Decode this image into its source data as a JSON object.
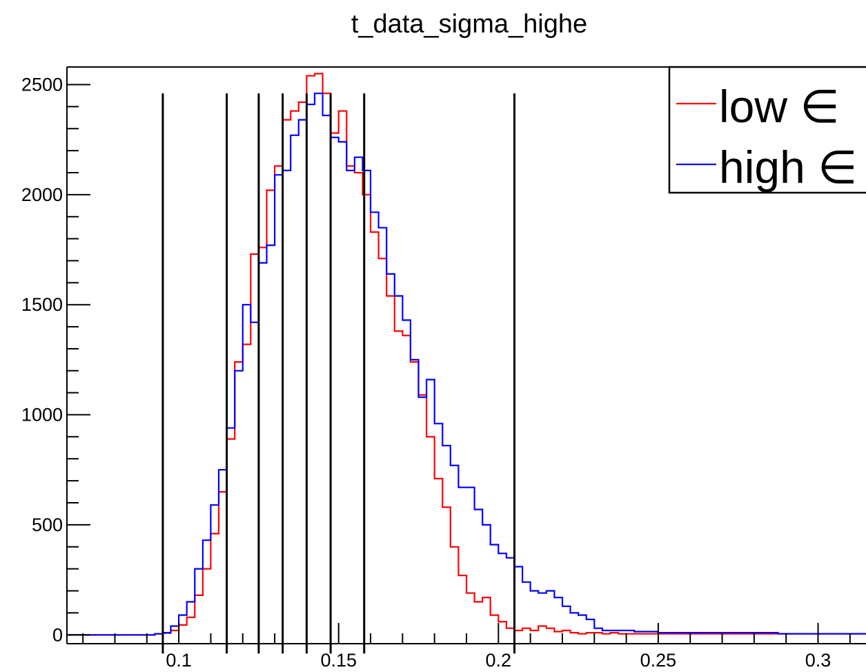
{
  "chart_data": {
    "type": "histogram",
    "title": "t_data_sigma_highe",
    "xlabel": "",
    "ylabel": "",
    "xlim": [
      0.065,
      0.315
    ],
    "ylim": [
      -40,
      2580
    ],
    "x_ticks": [
      0.1,
      0.15,
      0.2,
      0.25,
      0.3
    ],
    "x_tick_labels": [
      "0.1",
      "0.15",
      "0.2",
      "0.25",
      "0.3"
    ],
    "y_ticks": [
      0,
      500,
      1000,
      1500,
      2000,
      2500
    ],
    "y_tick_labels": [
      "0",
      "500",
      "1000",
      "1500",
      "2000",
      "2500"
    ],
    "bin_width": 0.0025,
    "x_start": 0.065,
    "legend": {
      "position": "top-right"
    },
    "colors": {
      "low": "#ff0000",
      "high": "#0000ff",
      "cuts": "#000000"
    },
    "series": [
      {
        "name": "low ∈",
        "color": "#ff0000",
        "values": [
          0,
          0,
          0,
          0,
          0,
          0,
          0,
          0,
          0,
          0,
          0,
          5,
          8,
          20,
          45,
          80,
          180,
          300,
          460,
          650,
          890,
          1240,
          1320,
          1730,
          1760,
          2020,
          2130,
          2340,
          2380,
          2420,
          2540,
          2550,
          2460,
          2280,
          2380,
          2130,
          2100,
          2000,
          1830,
          1710,
          1540,
          1380,
          1360,
          1240,
          1090,
          900,
          710,
          580,
          400,
          270,
          190,
          150,
          170,
          90,
          60,
          30,
          20,
          30,
          20,
          40,
          30,
          15,
          20,
          10,
          5,
          10,
          10,
          5,
          10,
          5,
          5,
          5,
          5,
          5,
          5,
          5,
          5,
          5,
          5,
          5,
          5,
          5,
          5,
          5,
          5,
          5,
          5,
          5,
          5,
          5,
          5,
          5,
          5,
          5,
          5,
          5,
          5,
          5,
          5,
          5
        ]
      },
      {
        "name": "high ∈",
        "color": "#0000ff",
        "values": [
          0,
          0,
          0,
          0,
          0,
          0,
          0,
          0,
          0,
          0,
          0,
          5,
          10,
          40,
          90,
          150,
          300,
          430,
          590,
          750,
          940,
          1200,
          1500,
          1420,
          1690,
          1770,
          2090,
          2110,
          2270,
          2340,
          2410,
          2460,
          2360,
          2260,
          2240,
          2110,
          2170,
          2110,
          1920,
          1850,
          1640,
          1540,
          1430,
          1250,
          1080,
          1160,
          960,
          860,
          770,
          670,
          670,
          570,
          500,
          410,
          370,
          350,
          310,
          240,
          200,
          190,
          200,
          170,
          130,
          100,
          90,
          70,
          30,
          20,
          20,
          20,
          20,
          15,
          15,
          15,
          10,
          10,
          10,
          10,
          10,
          10,
          10,
          10,
          10,
          10,
          10,
          10,
          10,
          10,
          10,
          5,
          5,
          5,
          5,
          5,
          5,
          5,
          5,
          5,
          5,
          5
        ]
      }
    ],
    "cut_lines": [
      0.095,
      0.115,
      0.125,
      0.1325,
      0.14,
      0.1475,
      0.158,
      0.205
    ],
    "cut_line_top": 2460
  }
}
